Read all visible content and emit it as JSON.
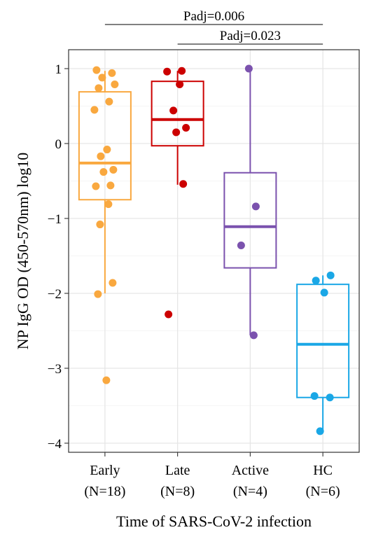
{
  "chart_data": {
    "type": "box",
    "xlabel": "Time of SARS-CoV-2 infection",
    "ylabel": "NP IgG OD (450-570nm) log10",
    "ylim": [
      -4.1,
      1.25
    ],
    "yticks": [
      1,
      0,
      -1,
      -2,
      -3,
      -4
    ],
    "ytick_labels": [
      "1",
      "0",
      "−1",
      "−2",
      "−3",
      "−4"
    ],
    "grid": true,
    "categories": [
      {
        "name": "Early",
        "n_label": "(N=18)",
        "color": "#f9a83f",
        "box": {
          "q1": -0.75,
          "median": -0.26,
          "q3": 0.69,
          "whisker_low": -2.0,
          "whisker_high": 0.97
        },
        "points": [
          0.98,
          0.94,
          0.88,
          0.79,
          0.74,
          0.56,
          0.45,
          -0.08,
          -0.17,
          -0.35,
          -0.38,
          -0.56,
          -0.57,
          -0.81,
          -1.08,
          -1.86,
          -2.01,
          -3.16
        ]
      },
      {
        "name": "Late",
        "n_label": "(N=8)",
        "color": "#cc0000",
        "box": {
          "q1": -0.03,
          "median": 0.32,
          "q3": 0.83,
          "whisker_low": -0.55,
          "whisker_high": 0.97
        },
        "points": [
          0.97,
          0.96,
          0.79,
          0.44,
          0.21,
          0.15,
          -0.54,
          -2.28
        ]
      },
      {
        "name": "Active",
        "n_label": "(N=4)",
        "color": "#7b52ae",
        "box": {
          "q1": -1.66,
          "median": -1.11,
          "q3": -0.39,
          "whisker_low": -2.56,
          "whisker_high": 1.0
        },
        "points": [
          1.0,
          -0.84,
          -1.36,
          -2.56
        ]
      },
      {
        "name": "HC",
        "n_label": "(N=6)",
        "color": "#1aa7e6",
        "box": {
          "q1": -3.39,
          "median": -2.68,
          "q3": -1.88,
          "whisker_low": -3.84,
          "whisker_high": -1.76
        },
        "points": [
          -1.76,
          -1.83,
          -1.99,
          -3.37,
          -3.39,
          -3.84
        ]
      }
    ],
    "annotations": [
      {
        "label": "Padj=0.006",
        "from": "Early",
        "to": "HC"
      },
      {
        "label": "Padj=0.023",
        "from": "Late",
        "to": "HC"
      }
    ]
  }
}
